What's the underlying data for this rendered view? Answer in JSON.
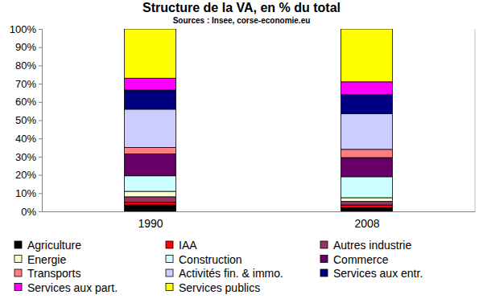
{
  "chart_data": {
    "type": "bar",
    "title": "Structure de la VA, en % du total",
    "subtitle": "Sources : Insee, corse-economie.eu",
    "categories": [
      "1990",
      "2008"
    ],
    "stacked": true,
    "grid": false,
    "legend": "bottom",
    "ylim": [
      0,
      100
    ],
    "yticks": [
      {
        "value": 0,
        "label": "0%"
      },
      {
        "value": 10,
        "label": "10%"
      },
      {
        "value": 20,
        "label": "20%"
      },
      {
        "value": 30,
        "label": "30%"
      },
      {
        "value": 40,
        "label": "40%"
      },
      {
        "value": 50,
        "label": "50%"
      },
      {
        "value": 60,
        "label": "60%"
      },
      {
        "value": 70,
        "label": "70%"
      },
      {
        "value": 80,
        "label": "80%"
      },
      {
        "value": 90,
        "label": "90%"
      },
      {
        "value": 100,
        "label": "100%"
      }
    ],
    "series": [
      {
        "name": "Agriculture",
        "color": "#000000",
        "values": [
          3.5,
          2
        ]
      },
      {
        "name": "IAA",
        "color": "#ff0000",
        "values": [
          1.5,
          1.5
        ]
      },
      {
        "name": "Autres industrie",
        "color": "#993366",
        "values": [
          3,
          2
        ]
      },
      {
        "name": "Energie",
        "color": "#ffffcc",
        "values": [
          3,
          2
        ]
      },
      {
        "name": "Construction",
        "color": "#ccffff",
        "values": [
          8.5,
          11.5
        ]
      },
      {
        "name": "Commerce",
        "color": "#660066",
        "values": [
          12,
          10.5
        ]
      },
      {
        "name": "Transports",
        "color": "#ff8080",
        "values": [
          3.5,
          4.5
        ]
      },
      {
        "name": "Activités fin. & immo.",
        "color": "#ccccff",
        "values": [
          21,
          19.5
        ]
      },
      {
        "name": "Services aux entr.",
        "color": "#000080",
        "values": [
          10.5,
          10.5
        ]
      },
      {
        "name": "Services aux part.",
        "color": "#ff00ff",
        "values": [
          6.5,
          7
        ]
      },
      {
        "name": "Services publics",
        "color": "#ffff00",
        "values": [
          27,
          29
        ]
      }
    ]
  }
}
